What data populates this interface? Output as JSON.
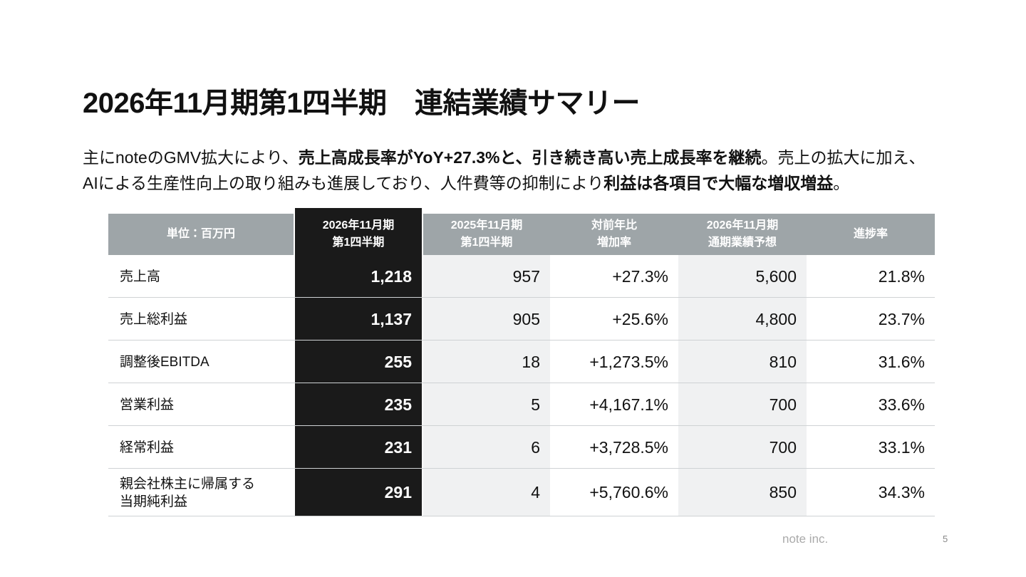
{
  "title": "2026年11月期第1四半期　連結業績サマリー",
  "summary": {
    "lines": [
      [
        {
          "text": "主にnoteのGMV拡大により、",
          "bold": false
        },
        {
          "text": "売上高成長率がYoY+27.3%と、引き続き高い売上成長率を継続",
          "bold": true
        },
        {
          "text": "。売上の拡大に加え、",
          "bold": false
        }
      ],
      [
        {
          "text": "AIによる生産性向上の取り組みも進展しており、人件費等の抑制により",
          "bold": false
        },
        {
          "text": "利益は各項目で大幅な増収増益",
          "bold": true
        },
        {
          "text": "。",
          "bold": false
        }
      ]
    ]
  },
  "table": {
    "header": [
      "単位：百万円",
      "2026年11月期\n第1四半期",
      "2025年11月期\n第1四半期",
      "対前年比\n増加率",
      "2026年11月期\n通期業績予想",
      "進捗率"
    ],
    "rows": [
      [
        "売上高",
        "1,218",
        "957",
        "+27.3%",
        "5,600",
        "21.8%"
      ],
      [
        "売上総利益",
        "1,137",
        "905",
        "+25.6%",
        "4,800",
        "23.7%"
      ],
      [
        "調整後EBITDA",
        "255",
        "18",
        "+1,273.5%",
        "810",
        "31.6%"
      ],
      [
        "営業利益",
        "235",
        "5",
        "+4,167.1%",
        "700",
        "33.6%"
      ],
      [
        "経常利益",
        "231",
        "6",
        "+3,728.5%",
        "700",
        "33.1%"
      ],
      [
        "親会社株主に帰属する\n当期純利益",
        "291",
        "4",
        "+5,760.6%",
        "850",
        "34.3%"
      ]
    ]
  },
  "footer": {
    "company": "note inc.",
    "page": "5"
  }
}
